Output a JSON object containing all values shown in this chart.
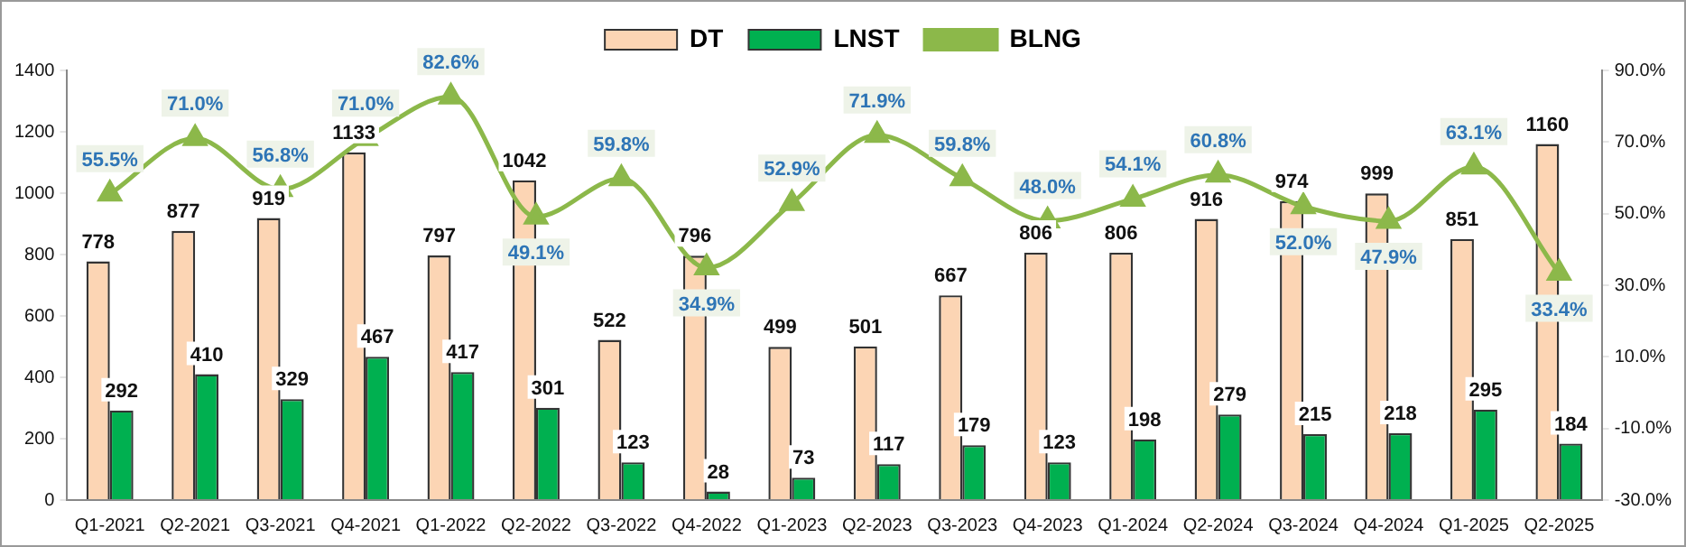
{
  "chart_data": {
    "type": "bar",
    "categories": [
      "Q1-2021",
      "Q2-2021",
      "Q3-2021",
      "Q4-2021",
      "Q1-2022",
      "Q2-2022",
      "Q3-2022",
      "Q4-2022",
      "Q1-2023",
      "Q2-2023",
      "Q3-2023",
      "Q4-2023",
      "Q1-2024",
      "Q2-2024",
      "Q3-2024",
      "Q4-2024",
      "Q1-2025",
      "Q2-2025"
    ],
    "series": [
      {
        "name": "DT",
        "color": "#fcd5b4",
        "values": [
          778,
          877,
          919,
          1133,
          797,
          1042,
          522,
          796,
          499,
          501,
          667,
          806,
          806,
          916,
          974,
          999,
          851,
          1160
        ]
      },
      {
        "name": "LNST",
        "color": "#00b050",
        "values": [
          292,
          410,
          329,
          467,
          417,
          301,
          123,
          28,
          73,
          117,
          179,
          123,
          198,
          279,
          215,
          218,
          295,
          184
        ]
      },
      {
        "name": "BLNG",
        "type": "line",
        "axis": "y2",
        "color": "#8cb84a",
        "values": [
          55.5,
          71.0,
          56.8,
          71.0,
          82.6,
          49.1,
          59.8,
          34.9,
          52.9,
          71.9,
          59.8,
          48.0,
          54.1,
          60.8,
          52.0,
          47.9,
          63.1,
          33.4
        ],
        "value_labels": [
          "55.5%",
          "71.0%",
          "56.8%",
          "71.0%",
          "82.6%",
          "49.1%",
          "59.8%",
          "34.9%",
          "52.9%",
          "71.9%",
          "59.8%",
          "48.0%",
          "54.1%",
          "60.8%",
          "52.0%",
          "47.9%",
          "63.1%",
          "33.4%"
        ]
      }
    ],
    "ylim": [
      0,
      1400
    ],
    "yticks": [
      0,
      200,
      400,
      600,
      800,
      1000,
      1200,
      1400
    ],
    "y2lim": [
      -30,
      90
    ],
    "y2ticks": [
      {
        "value": -30,
        "label": "-30.0%"
      },
      {
        "value": -10,
        "label": "-10.0%"
      },
      {
        "value": 10,
        "label": "10.0%"
      },
      {
        "value": 30,
        "label": "30.0%"
      },
      {
        "value": 50,
        "label": "50.0%"
      },
      {
        "value": 70,
        "label": "70.0%"
      },
      {
        "value": 90,
        "label": "90.0%"
      }
    ],
    "data_labels": true,
    "legend": "top",
    "grid": false,
    "marker": "triangle",
    "line_style": "solid"
  }
}
